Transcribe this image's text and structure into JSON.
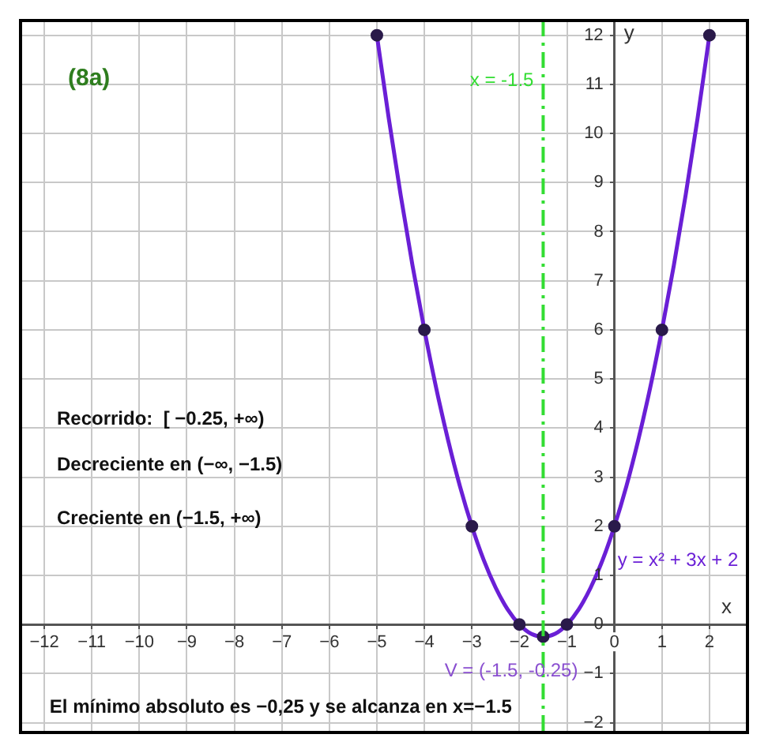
{
  "chart_data": {
    "type": "line",
    "title": "(8a)",
    "xlabel": "x",
    "ylabel": "y",
    "xlim": [
      -12.5,
      2.8
    ],
    "ylim": [
      -2.2,
      12.3
    ],
    "xticks": [
      -12,
      -11,
      -10,
      -9,
      -8,
      -7,
      -6,
      -5,
      -4,
      -3,
      -2,
      -1,
      0,
      1,
      2
    ],
    "yticks": [
      -2,
      -1,
      0,
      1,
      2,
      3,
      4,
      5,
      6,
      7,
      8,
      9,
      10,
      11,
      12
    ],
    "grid": true,
    "legend": "right",
    "series": [
      {
        "name": "y = x² + 3x + 2",
        "color": "#6a1fd6",
        "marker": "none",
        "x": [
          -5,
          -4.75,
          -4.5,
          -4.25,
          -4,
          -3.75,
          -3.5,
          -3.25,
          -3,
          -2.75,
          -2.5,
          -2.25,
          -2,
          -1.75,
          -1.5,
          -1.25,
          -1,
          -0.75,
          -0.5,
          -0.25,
          0,
          0.25,
          0.5,
          0.75,
          1,
          1.25,
          1.5,
          1.75,
          2
        ],
        "values": [
          12,
          10.31,
          8.75,
          7.31,
          6,
          4.81,
          3.75,
          2.81,
          2,
          1.31,
          0.75,
          0.31,
          0,
          -0.19,
          -0.25,
          -0.19,
          0,
          0.31,
          0.75,
          1.31,
          2,
          2.81,
          3.75,
          4.81,
          6,
          7.31,
          8.75,
          10.31,
          12
        ]
      },
      {
        "type": "scatter",
        "color": "#2a1a4a",
        "marker": "circle",
        "x": [
          -5,
          -4,
          -3,
          -2,
          -1.5,
          -1,
          0,
          1,
          2
        ],
        "values": [
          12,
          6,
          2,
          0,
          -0.25,
          0,
          2,
          6,
          12
        ]
      }
    ],
    "ref_lines": [
      {
        "axis": "x",
        "value": -1.5,
        "label": "x = -1.5",
        "color": "#33dd33",
        "line_style": "dashed"
      }
    ],
    "annotations": [
      "Recorrido:  [ −0.25, +∞)",
      "Decreciente en (−∞, −1.5)",
      "Creciente en (−1.5, +∞)",
      "El mínimo absoluto es −0,25 y se alcanza en x=−1.5",
      {
        "text": "V = (-1.5, -0.25)",
        "x": -1.5,
        "y": -0.25
      }
    ]
  }
}
